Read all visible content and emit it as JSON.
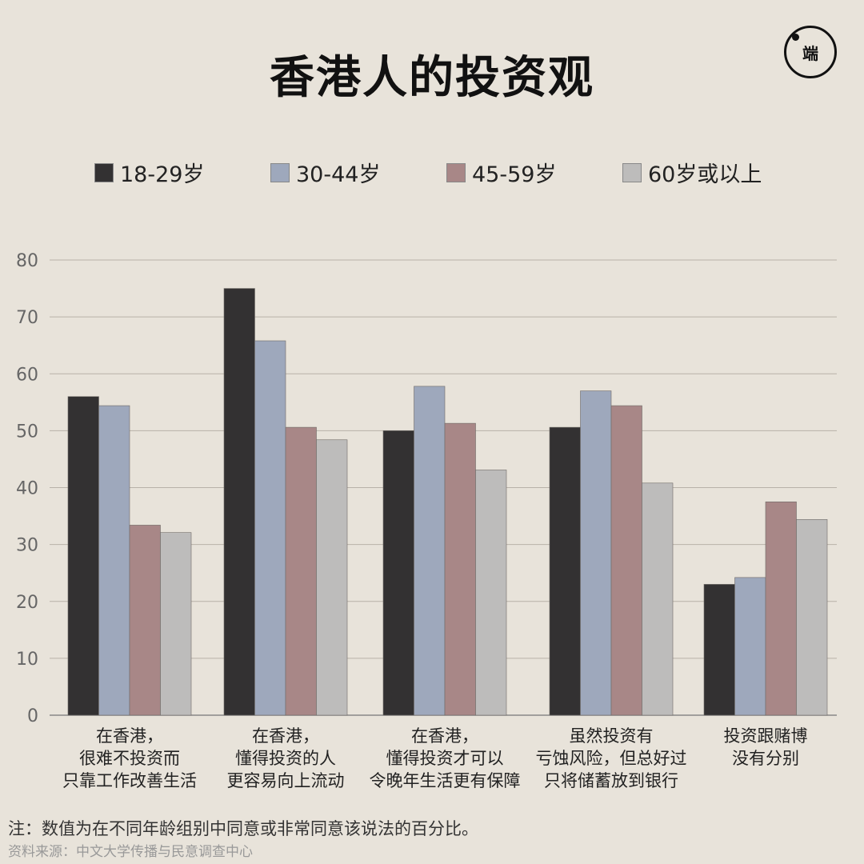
{
  "title": "香港人的投资观",
  "logo_text": "端",
  "colors": {
    "background": "#e8e3da",
    "gridline": "#b8b2a8",
    "axis_text": "#666666"
  },
  "chart_data": {
    "type": "bar",
    "categories": [
      [
        "在香港，",
        "很难不投资而",
        "只靠工作改善生活"
      ],
      [
        "在香港，",
        "懂得投资的人",
        "更容易向上流动"
      ],
      [
        "在香港，",
        "懂得投资才可以",
        "令晚年生活更有保障"
      ],
      [
        "虽然投资有",
        "亏蚀风险，但总好过",
        "只将储蓄放到银行"
      ],
      [
        "投资跟赌博",
        "没有分别"
      ]
    ],
    "series": [
      {
        "name": "18-29岁",
        "color": "#333132",
        "values": [
          56,
          75,
          50,
          50.6,
          23
        ]
      },
      {
        "name": "30-44岁",
        "color": "#9ea8bc",
        "values": [
          54.4,
          65.8,
          57.8,
          57,
          24.2
        ]
      },
      {
        "name": "45-59岁",
        "color": "#a88787",
        "values": [
          33.4,
          50.6,
          51.3,
          54.4,
          37.5
        ]
      },
      {
        "name": "60岁或以上",
        "color": "#bdbcbb",
        "values": [
          32.1,
          48.4,
          43.1,
          40.8,
          34.4
        ]
      }
    ],
    "ylim": [
      0,
      80
    ],
    "yticks": [
      "0",
      "10",
      "20",
      "30",
      "40",
      "50",
      "60",
      "70",
      "80"
    ],
    "grid": true,
    "legend_position": "top"
  },
  "note": "注：数值为在不同年龄组别中同意或非常同意该说法的百分比。",
  "source": "资料来源：中文大学传播与民意调查中心"
}
